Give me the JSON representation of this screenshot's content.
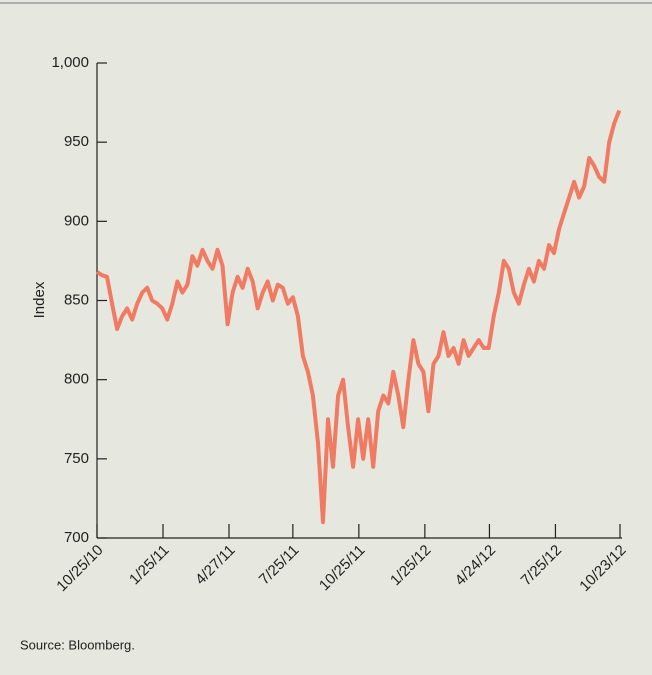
{
  "chart_data": {
    "type": "line",
    "y_label": "Index",
    "source": "Source: Bloomberg.",
    "xlim": [
      "2010-10-25",
      "2012-10-23"
    ],
    "xticks": [
      {
        "value": "2010-10-25",
        "label": "10/25/10"
      },
      {
        "value": "2011-01-25",
        "label": "1/25/11"
      },
      {
        "value": "2011-04-27",
        "label": "4/27/11"
      },
      {
        "value": "2011-07-25",
        "label": "7/25/11"
      },
      {
        "value": "2011-10-25",
        "label": "10/25/11"
      },
      {
        "value": "2012-01-25",
        "label": "1/25/12"
      },
      {
        "value": "2012-04-24",
        "label": "4/24/12"
      },
      {
        "value": "2012-07-25",
        "label": "7/25/12"
      },
      {
        "value": "2012-10-23",
        "label": "10/23/12"
      }
    ],
    "ylim": [
      700,
      1000
    ],
    "yticks": [
      700,
      750,
      800,
      850,
      900,
      950,
      {
        "value": 1000,
        "label": "1,000"
      }
    ],
    "x": [
      "2010-10-25",
      "2010-11-01",
      "2010-11-08",
      "2010-11-15",
      "2010-11-22",
      "2010-11-29",
      "2010-12-06",
      "2010-12-13",
      "2010-12-20",
      "2010-12-27",
      "2011-01-03",
      "2011-01-10",
      "2011-01-17",
      "2011-01-24",
      "2011-01-31",
      "2011-02-07",
      "2011-02-14",
      "2011-02-21",
      "2011-02-28",
      "2011-03-07",
      "2011-03-14",
      "2011-03-21",
      "2011-03-28",
      "2011-04-04",
      "2011-04-11",
      "2011-04-18",
      "2011-04-25",
      "2011-05-02",
      "2011-05-09",
      "2011-05-16",
      "2011-05-23",
      "2011-05-30",
      "2011-06-06",
      "2011-06-13",
      "2011-06-20",
      "2011-06-27",
      "2011-07-04",
      "2011-07-11",
      "2011-07-18",
      "2011-07-25",
      "2011-08-01",
      "2011-08-08",
      "2011-08-15",
      "2011-08-22",
      "2011-08-29",
      "2011-09-05",
      "2011-09-12",
      "2011-09-19",
      "2011-09-26",
      "2011-10-03",
      "2011-10-10",
      "2011-10-17",
      "2011-10-24",
      "2011-10-31",
      "2011-11-07",
      "2011-11-14",
      "2011-11-21",
      "2011-11-28",
      "2011-12-05",
      "2011-12-12",
      "2011-12-19",
      "2011-12-26",
      "2012-01-02",
      "2012-01-09",
      "2012-01-16",
      "2012-01-23",
      "2012-01-30",
      "2012-02-06",
      "2012-02-13",
      "2012-02-20",
      "2012-02-27",
      "2012-03-05",
      "2012-03-12",
      "2012-03-19",
      "2012-03-26",
      "2012-04-02",
      "2012-04-09",
      "2012-04-16",
      "2012-04-23",
      "2012-04-30",
      "2012-05-07",
      "2012-05-14",
      "2012-05-21",
      "2012-05-28",
      "2012-06-04",
      "2012-06-11",
      "2012-06-18",
      "2012-06-25",
      "2012-07-02",
      "2012-07-09",
      "2012-07-16",
      "2012-07-23",
      "2012-07-30",
      "2012-08-06",
      "2012-08-13",
      "2012-08-20",
      "2012-08-27",
      "2012-09-03",
      "2012-09-10",
      "2012-09-17",
      "2012-09-24",
      "2012-10-01",
      "2012-10-08",
      "2012-10-15",
      "2012-10-22"
    ],
    "series": [
      {
        "name": "Index",
        "color": "#f07a62",
        "values": [
          868,
          866,
          865,
          848,
          832,
          840,
          845,
          838,
          848,
          855,
          858,
          850,
          848,
          845,
          838,
          848,
          862,
          855,
          860,
          878,
          872,
          882,
          875,
          870,
          882,
          872,
          835,
          855,
          865,
          858,
          870,
          862,
          845,
          855,
          862,
          850,
          860,
          858,
          848,
          852,
          840,
          815,
          805,
          790,
          760,
          710,
          775,
          745,
          790,
          800,
          770,
          745,
          775,
          750,
          775,
          745,
          780,
          790,
          785,
          805,
          790,
          770,
          800,
          825,
          810,
          805,
          780,
          810,
          815,
          830,
          815,
          820,
          810,
          825,
          815,
          820,
          825,
          820,
          820,
          840,
          855,
          875,
          870,
          855,
          848,
          860,
          870,
          862,
          875,
          870,
          885,
          880,
          895,
          905,
          915,
          925,
          915,
          922,
          940,
          935,
          928,
          925,
          950,
          962,
          970
        ]
      }
    ]
  }
}
